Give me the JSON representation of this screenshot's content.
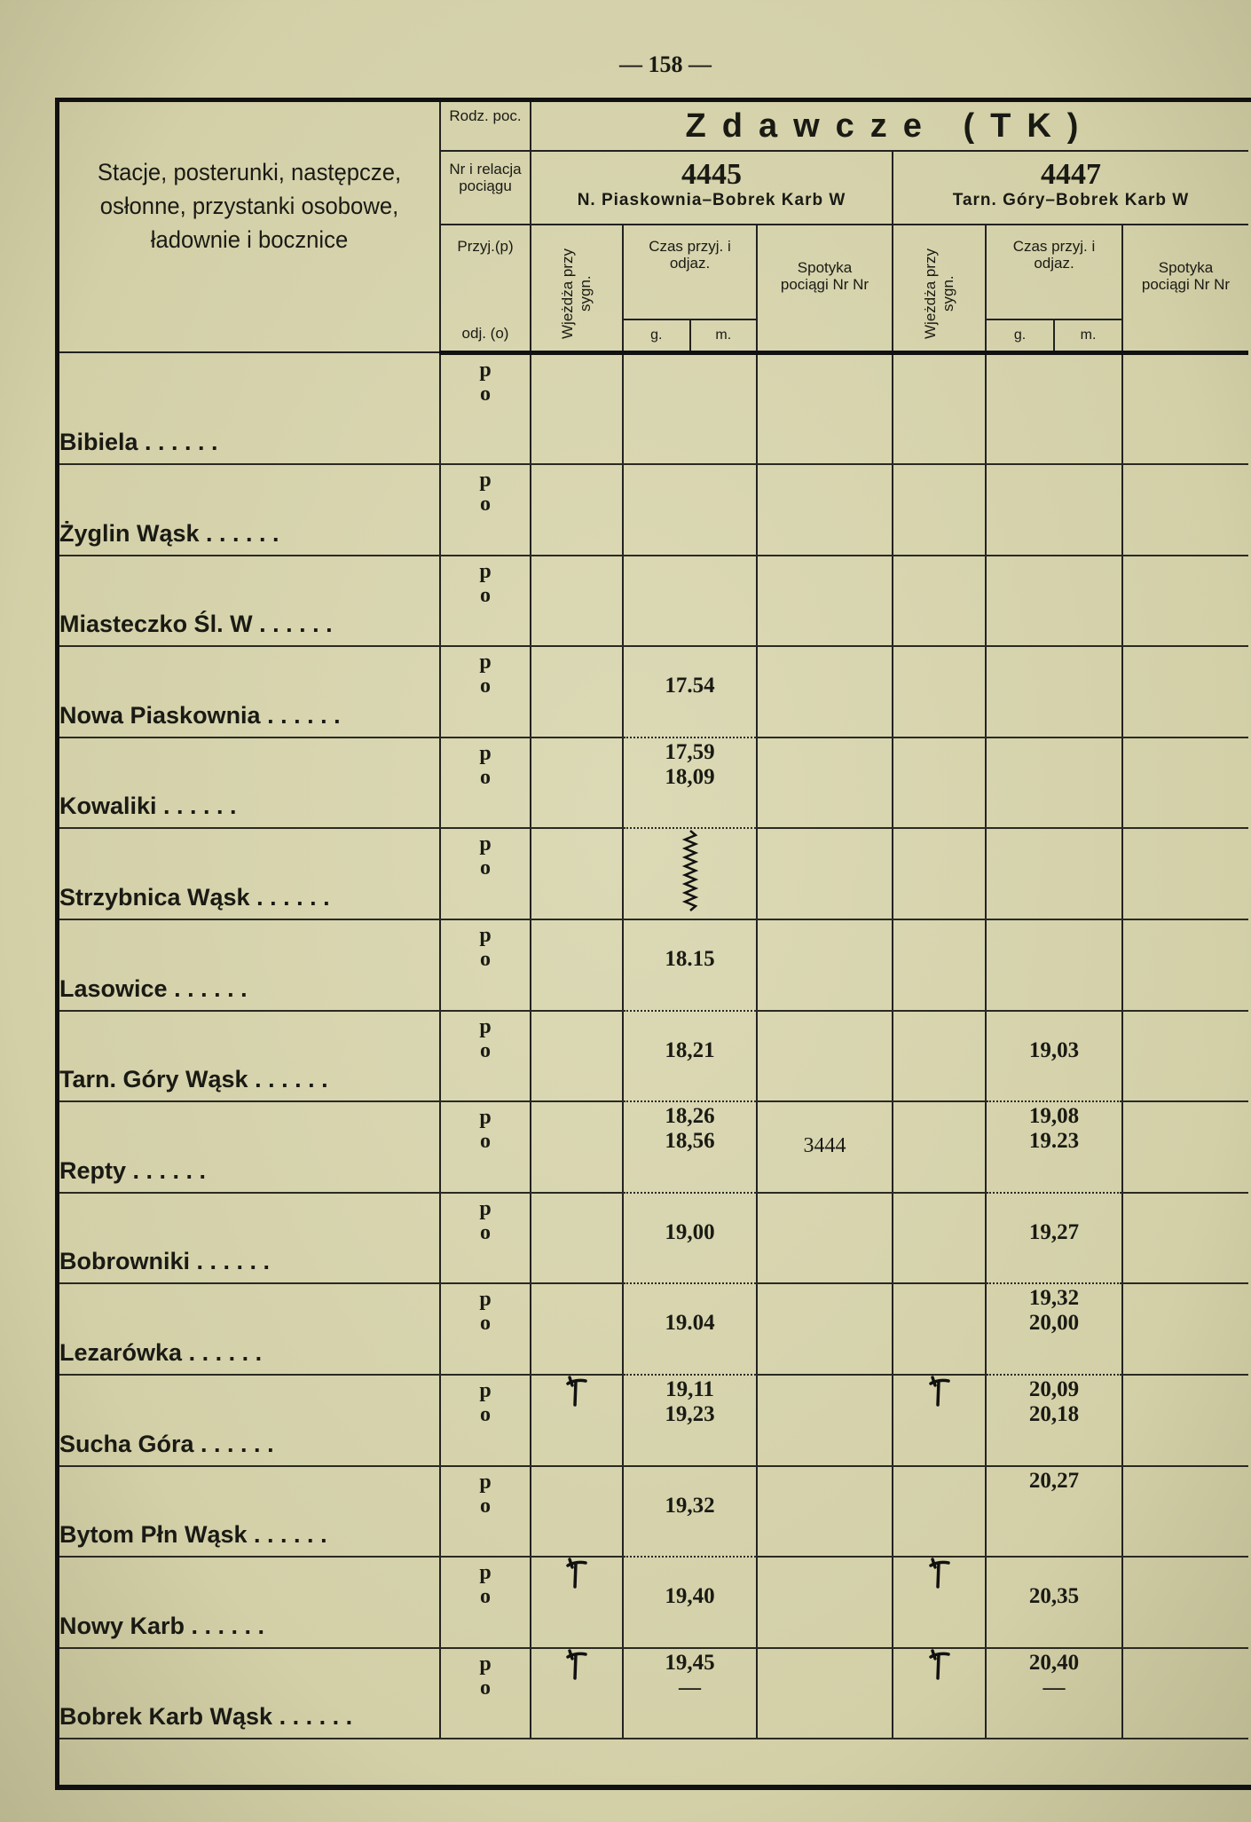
{
  "page_number": "— 158 —",
  "header": {
    "stations_label": "Stacje, posterunki, następcze, osłonne, przystanki osobowe, ładownie i bocznice",
    "rodz_poc": "Rodz. poc.",
    "nr_relacja": "Nr i relacja pociągu",
    "przyj": "Przyj.(p)",
    "odj": "odj. (o)",
    "title": "Zdawcze (TK)",
    "wjezdza": "Wjeżdża przy sygn.",
    "czas": "Czas przyj. i odjaz.",
    "spotyka": "Spotyka pociągi Nr Nr",
    "g": "g.",
    "m": "m.",
    "trains": [
      {
        "number": "4445",
        "relation": "N. Piaskownia–Bobrek Karb W"
      },
      {
        "number": "4447",
        "relation": "Tarn. Góry–Bobrek Karb W"
      }
    ]
  },
  "p_label": "p",
  "o_label": "o",
  "rows": [
    {
      "station": "Bibiela",
      "t": [
        {},
        {}
      ]
    },
    {
      "station": "Żyglin Wąsk",
      "t": [
        {},
        {}
      ]
    },
    {
      "station": "Miasteczko Śl. W",
      "t": [
        {},
        {}
      ]
    },
    {
      "station": "Nowa Piaskownia",
      "t": [
        {
          "o": "17.54"
        },
        {}
      ]
    },
    {
      "station": "Kowaliki",
      "t": [
        {
          "p": "17,59",
          "o": "18,09"
        },
        {}
      ]
    },
    {
      "station": "Strzybnica Wąsk",
      "t": [
        {
          "wavy": true
        },
        {}
      ]
    },
    {
      "station": "Lasowice",
      "t": [
        {
          "o": "18.15"
        },
        {}
      ]
    },
    {
      "station": "Tarn. Góry Wąsk",
      "t": [
        {
          "o": "18,21"
        },
        {
          "o": "19,03"
        }
      ]
    },
    {
      "station": "Repty",
      "t": [
        {
          "p": "18,26",
          "o": "18,56",
          "meet": "3444"
        },
        {
          "p": "19,08",
          "o": "19.23"
        }
      ]
    },
    {
      "station": "Bobrowniki",
      "t": [
        {
          "o": "19,00"
        },
        {
          "o": "19,27"
        }
      ]
    },
    {
      "station": "Lezarówka",
      "t": [
        {
          "o": "19.04"
        },
        {
          "p": "19,32",
          "o": "20,00"
        }
      ]
    },
    {
      "station": "Sucha Góra",
      "t": [
        {
          "p": "19,11",
          "o": "19,23",
          "entry": true
        },
        {
          "p": "20,09",
          "o": "20,18",
          "entry": true
        }
      ]
    },
    {
      "station": "Bytom Płn Wąsk",
      "t": [
        {
          "o": "19,32"
        },
        {
          "mid": "20,27"
        }
      ]
    },
    {
      "station": "Nowy Karb",
      "t": [
        {
          "o": "19,40",
          "entry": true
        },
        {
          "o": "20,35",
          "entry": true
        }
      ]
    },
    {
      "station": "Bobrek Karb Wąsk",
      "t": [
        {
          "p": "19,45",
          "o": "—",
          "entry": true
        },
        {
          "p": "20,40",
          "o": "—",
          "entry": true
        }
      ]
    }
  ],
  "colors": {
    "paper": "#d8d5ae",
    "ink": "#1a1a14"
  }
}
